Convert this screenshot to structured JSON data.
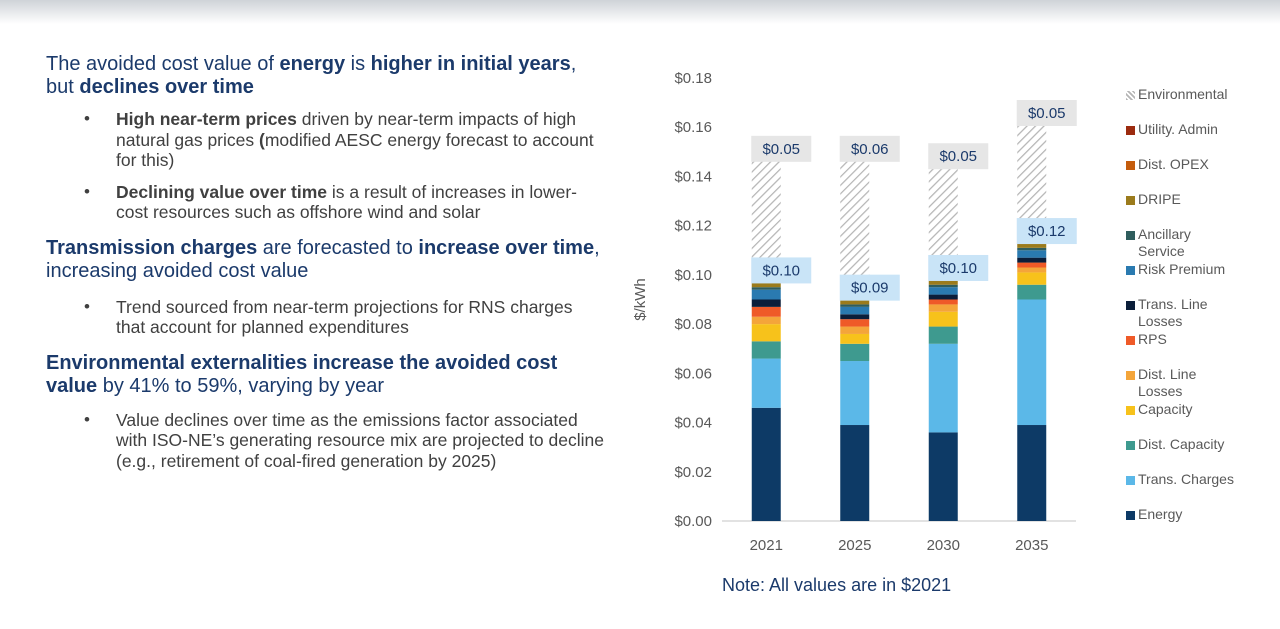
{
  "left": {
    "sections": [
      {
        "heading_parts": [
          {
            "text": "The avoided cost value of ",
            "bold": false
          },
          {
            "text": "energy",
            "bold": true
          },
          {
            "text": " is ",
            "bold": false
          },
          {
            "text": "higher in initial years",
            "bold": true
          },
          {
            "text": ", but ",
            "bold": false
          },
          {
            "text": "declines over time",
            "bold": true
          }
        ],
        "bullets": [
          [
            {
              "text": "High near-term prices",
              "bold": true
            },
            {
              "text": " driven by near-term impacts of high natural gas prices ",
              "bold": false
            },
            {
              "text": "(",
              "bold": true
            },
            {
              "text": "modified AESC energy forecast to account for this)",
              "bold": false
            }
          ],
          [
            {
              "text": "Declining value over time",
              "bold": true
            },
            {
              "text": " is a result of increases in lower-cost resources such as offshore wind and solar",
              "bold": false
            }
          ]
        ]
      },
      {
        "heading_parts": [
          {
            "text": "Transmission charges",
            "bold": true
          },
          {
            "text": " are forecasted to ",
            "bold": false
          },
          {
            "text": "increase over time",
            "bold": true
          },
          {
            "text": ", increasing avoided cost value",
            "bold": false
          }
        ],
        "bullets": [
          [
            {
              "text": "Trend sourced from near-term projections for RNS charges that account for planned expenditures",
              "bold": false
            }
          ]
        ]
      },
      {
        "heading_parts": [
          {
            "text": "Environmental externalities increase the avoided cost value",
            "bold": true
          },
          {
            "text": " by 41% to 59%, varying by year",
            "bold": false
          }
        ],
        "bullets": [
          [
            {
              "text": "Value declines over time as the emissions factor associated with ISO-NE’s generating resource mix are projected to decline (e.g., retirement of coal-fired generation by 2025)",
              "bold": false
            }
          ]
        ]
      }
    ]
  },
  "note": "Note: All values are in $2021",
  "chart_data": {
    "type": "bar",
    "stacked": true,
    "categories": [
      "2021",
      "2025",
      "2030",
      "2035"
    ],
    "ylabel": "$/kWh",
    "ylim": [
      0,
      0.18
    ],
    "yticks": [
      0.0,
      0.02,
      0.04,
      0.06,
      0.08,
      0.1,
      0.12,
      0.14,
      0.16,
      0.18
    ],
    "ytick_labels": [
      "$0.00",
      "$0.02",
      "$0.04",
      "$0.06",
      "$0.08",
      "$0.10",
      "$0.12",
      "$0.14",
      "$0.16",
      "$0.18"
    ],
    "grid": false,
    "legend_position": "right",
    "series": [
      {
        "name": "Energy",
        "color": "#0d3a66",
        "values": [
          0.046,
          0.039,
          0.036,
          0.039
        ]
      },
      {
        "name": "Trans. Charges",
        "color": "#5bb8e8",
        "values": [
          0.02,
          0.026,
          0.036,
          0.051
        ]
      },
      {
        "name": "Dist. Capacity",
        "color": "#3e9a8f",
        "values": [
          0.007,
          0.007,
          0.007,
          0.006
        ]
      },
      {
        "name": "Capacity",
        "color": "#f7c21b",
        "values": [
          0.007,
          0.004,
          0.006,
          0.005
        ]
      },
      {
        "name": "Dist. Line Losses",
        "color": "#f4a53a",
        "values": [
          0.003,
          0.003,
          0.003,
          0.002
        ]
      },
      {
        "name": "RPS",
        "color": "#ef5a28",
        "values": [
          0.004,
          0.003,
          0.002,
          0.002
        ]
      },
      {
        "name": "Trans. Line Losses",
        "color": "#0b1e3a",
        "values": [
          0.003,
          0.002,
          0.002,
          0.002
        ]
      },
      {
        "name": "Risk Premium",
        "color": "#2a7ab0",
        "values": [
          0.004,
          0.003,
          0.003,
          0.003
        ]
      },
      {
        "name": "Ancillary Service",
        "color": "#2f5d5d",
        "values": [
          0.001,
          0.001,
          0.001,
          0.001
        ]
      },
      {
        "name": "DRIPE",
        "color": "#9b7b1c",
        "values": [
          0.005,
          0.005,
          0.005,
          0.005
        ]
      },
      {
        "name": "Dist. OPEX",
        "color": "#c45c0d",
        "values": [
          0.0005,
          0.0005,
          0.0005,
          0.0005
        ]
      },
      {
        "name": "Utility. Admin",
        "color": "#9c2b0f",
        "values": [
          0.0005,
          0.0005,
          0.0005,
          0.0005
        ]
      },
      {
        "name": "Environmental",
        "color": "#bfbfbf",
        "pattern": "hatch",
        "values": [
          0.049,
          0.056,
          0.045,
          0.05
        ]
      }
    ],
    "annotations": {
      "environmental_labels": [
        "$0.05",
        "$0.06",
        "$0.05",
        "$0.05"
      ],
      "base_labels": [
        "$0.10",
        "$0.09",
        "$0.10",
        "$0.12"
      ]
    }
  }
}
